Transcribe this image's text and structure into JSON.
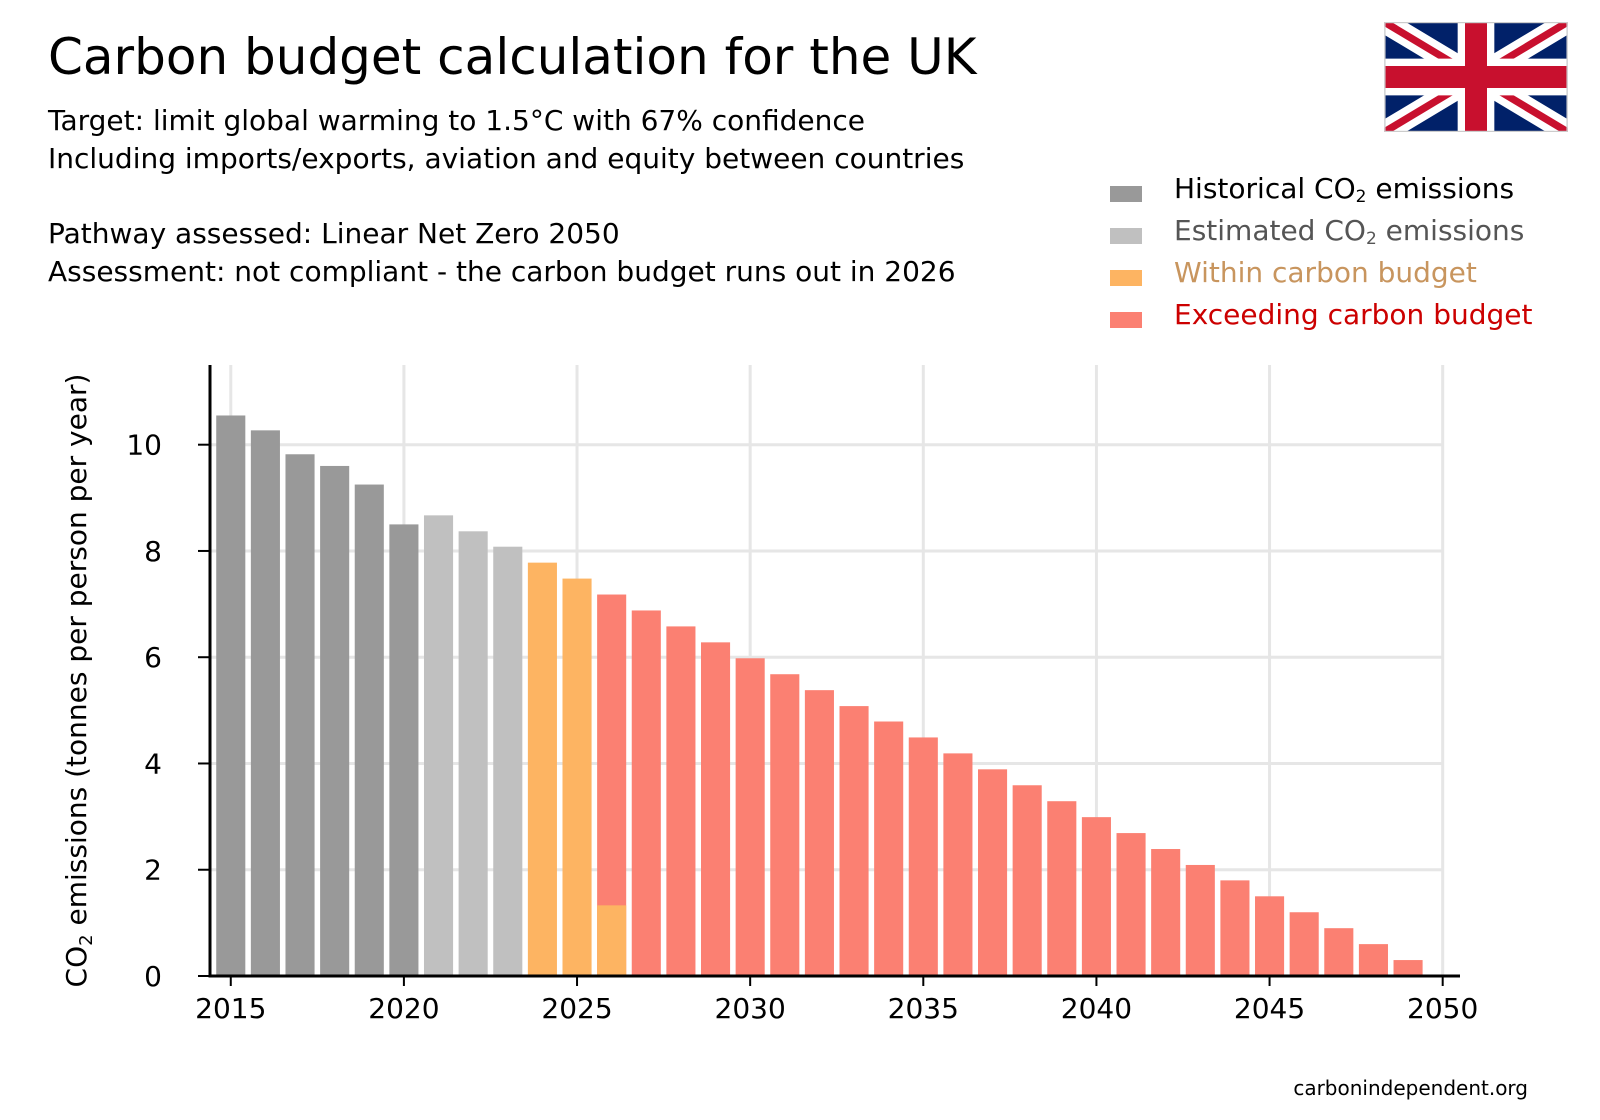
{
  "header": {
    "title": "Carbon budget calculation for the UK",
    "line1": "Target: limit global warming to 1.5°C with 67% confidence",
    "line2": "Including imports/exports, aviation and equity between countries",
    "line3": "Pathway assessed: Linear Net Zero 2050",
    "line4": "Assessment: not compliant - the carbon budget runs out in 2026"
  },
  "flag_icon": "uk-flag-icon",
  "legend": [
    {
      "pre": "Historical CO",
      "sub": "2",
      "post": " emissions",
      "color": "#999999",
      "text_color": "#000000"
    },
    {
      "pre": "Estimated CO",
      "sub": "2",
      "post": " emissions",
      "color": "#c0c0c0",
      "text_color": "#555555"
    },
    {
      "pre": "Within carbon budget",
      "sub": "",
      "post": "",
      "color": "#fdb462",
      "text_color": "#c8955e"
    },
    {
      "pre": "Exceeding carbon budget",
      "sub": "",
      "post": "",
      "color": "#fb8072",
      "text_color": "#cc0000"
    }
  ],
  "credit": "carbonindependent.org",
  "chart_data": {
    "type": "bar",
    "ylabel_pre": "CO",
    "ylabel_sub": "2",
    "ylabel_post": " emissions (tonnes per person per year)",
    "ylim": [
      0,
      11.5
    ],
    "xlim": [
      2014.4,
      2050.5
    ],
    "yticks": [
      0,
      2,
      4,
      6,
      8,
      10
    ],
    "xticks": [
      2015,
      2020,
      2025,
      2030,
      2035,
      2040,
      2045,
      2050
    ],
    "grid": true,
    "colors": {
      "historical": "#999999",
      "estimated": "#c0c0c0",
      "within": "#fdb462",
      "exceeding": "#fb8072"
    },
    "bars": [
      {
        "year": 2015,
        "value": 10.55,
        "kind": "historical"
      },
      {
        "year": 2016,
        "value": 10.27,
        "kind": "historical"
      },
      {
        "year": 2017,
        "value": 9.82,
        "kind": "historical"
      },
      {
        "year": 2018,
        "value": 9.6,
        "kind": "historical"
      },
      {
        "year": 2019,
        "value": 9.25,
        "kind": "historical"
      },
      {
        "year": 2020,
        "value": 8.5,
        "kind": "historical"
      },
      {
        "year": 2021,
        "value": 8.67,
        "kind": "estimated"
      },
      {
        "year": 2022,
        "value": 8.37,
        "kind": "estimated"
      },
      {
        "year": 2023,
        "value": 8.08,
        "kind": "estimated"
      },
      {
        "year": 2024,
        "value": 7.78,
        "kind": "within"
      },
      {
        "year": 2025,
        "value": 7.48,
        "kind": "within"
      },
      {
        "year": 2026,
        "value": 7.18,
        "kind": "split",
        "within_value": 1.33
      },
      {
        "year": 2027,
        "value": 6.88,
        "kind": "exceeding"
      },
      {
        "year": 2028,
        "value": 6.58,
        "kind": "exceeding"
      },
      {
        "year": 2029,
        "value": 6.28,
        "kind": "exceeding"
      },
      {
        "year": 2030,
        "value": 5.98,
        "kind": "exceeding"
      },
      {
        "year": 2031,
        "value": 5.68,
        "kind": "exceeding"
      },
      {
        "year": 2032,
        "value": 5.38,
        "kind": "exceeding"
      },
      {
        "year": 2033,
        "value": 5.08,
        "kind": "exceeding"
      },
      {
        "year": 2034,
        "value": 4.79,
        "kind": "exceeding"
      },
      {
        "year": 2035,
        "value": 4.49,
        "kind": "exceeding"
      },
      {
        "year": 2036,
        "value": 4.19,
        "kind": "exceeding"
      },
      {
        "year": 2037,
        "value": 3.89,
        "kind": "exceeding"
      },
      {
        "year": 2038,
        "value": 3.59,
        "kind": "exceeding"
      },
      {
        "year": 2039,
        "value": 3.29,
        "kind": "exceeding"
      },
      {
        "year": 2040,
        "value": 2.99,
        "kind": "exceeding"
      },
      {
        "year": 2041,
        "value": 2.69,
        "kind": "exceeding"
      },
      {
        "year": 2042,
        "value": 2.39,
        "kind": "exceeding"
      },
      {
        "year": 2043,
        "value": 2.09,
        "kind": "exceeding"
      },
      {
        "year": 2044,
        "value": 1.8,
        "kind": "exceeding"
      },
      {
        "year": 2045,
        "value": 1.5,
        "kind": "exceeding"
      },
      {
        "year": 2046,
        "value": 1.2,
        "kind": "exceeding"
      },
      {
        "year": 2047,
        "value": 0.9,
        "kind": "exceeding"
      },
      {
        "year": 2048,
        "value": 0.6,
        "kind": "exceeding"
      },
      {
        "year": 2049,
        "value": 0.3,
        "kind": "exceeding"
      },
      {
        "year": 2050,
        "value": 0.0,
        "kind": "exceeding"
      }
    ]
  }
}
